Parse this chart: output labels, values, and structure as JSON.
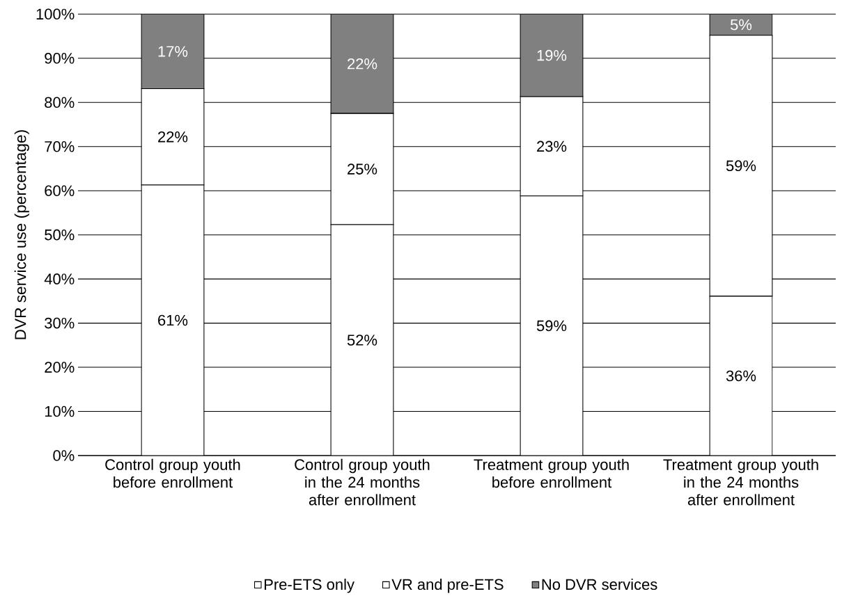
{
  "chart_data": {
    "type": "bar",
    "stacked": true,
    "ylabel": "DVR service use (percentage)",
    "categories": [
      "Control group youth before enrollment",
      "Control group youth in the 24 months after enrollment",
      "Treatment group youth before enrollment",
      "Treatment group youth in the 24 months after enrollment"
    ],
    "series": [
      {
        "name": "Pre-ETS only",
        "color": "#ffffff",
        "values": [
          61.3,
          52.3,
          58.8,
          36.1
        ],
        "value_labels": [
          "61%",
          "52%",
          "59%",
          "36%"
        ]
      },
      {
        "name": "VR and pre-ETS",
        "color": "#ffffff",
        "values": [
          21.8,
          25.2,
          22.5,
          59.1
        ],
        "value_labels": [
          "22%",
          "25%",
          "23%",
          "59%"
        ]
      },
      {
        "name": "No DVR services",
        "color": "#808080",
        "values": [
          16.9,
          22.5,
          18.7,
          4.8
        ],
        "value_labels": [
          "17%",
          "22%",
          "19%",
          "5%"
        ]
      }
    ],
    "ylim": [
      0,
      100
    ],
    "yticks": [
      {
        "value": 0,
        "label": "0%"
      },
      {
        "value": 10,
        "label": "10%"
      },
      {
        "value": 20,
        "label": "20%"
      },
      {
        "value": 30,
        "label": "30%"
      },
      {
        "value": 40,
        "label": "40%"
      },
      {
        "value": 50,
        "label": "50%"
      },
      {
        "value": 60,
        "label": "60%"
      },
      {
        "value": 70,
        "label": "70%"
      },
      {
        "value": 80,
        "label": "80%"
      },
      {
        "value": 90,
        "label": "90%"
      },
      {
        "value": 100,
        "label": "100%"
      }
    ],
    "grid": "y",
    "legend": "bottom"
  }
}
